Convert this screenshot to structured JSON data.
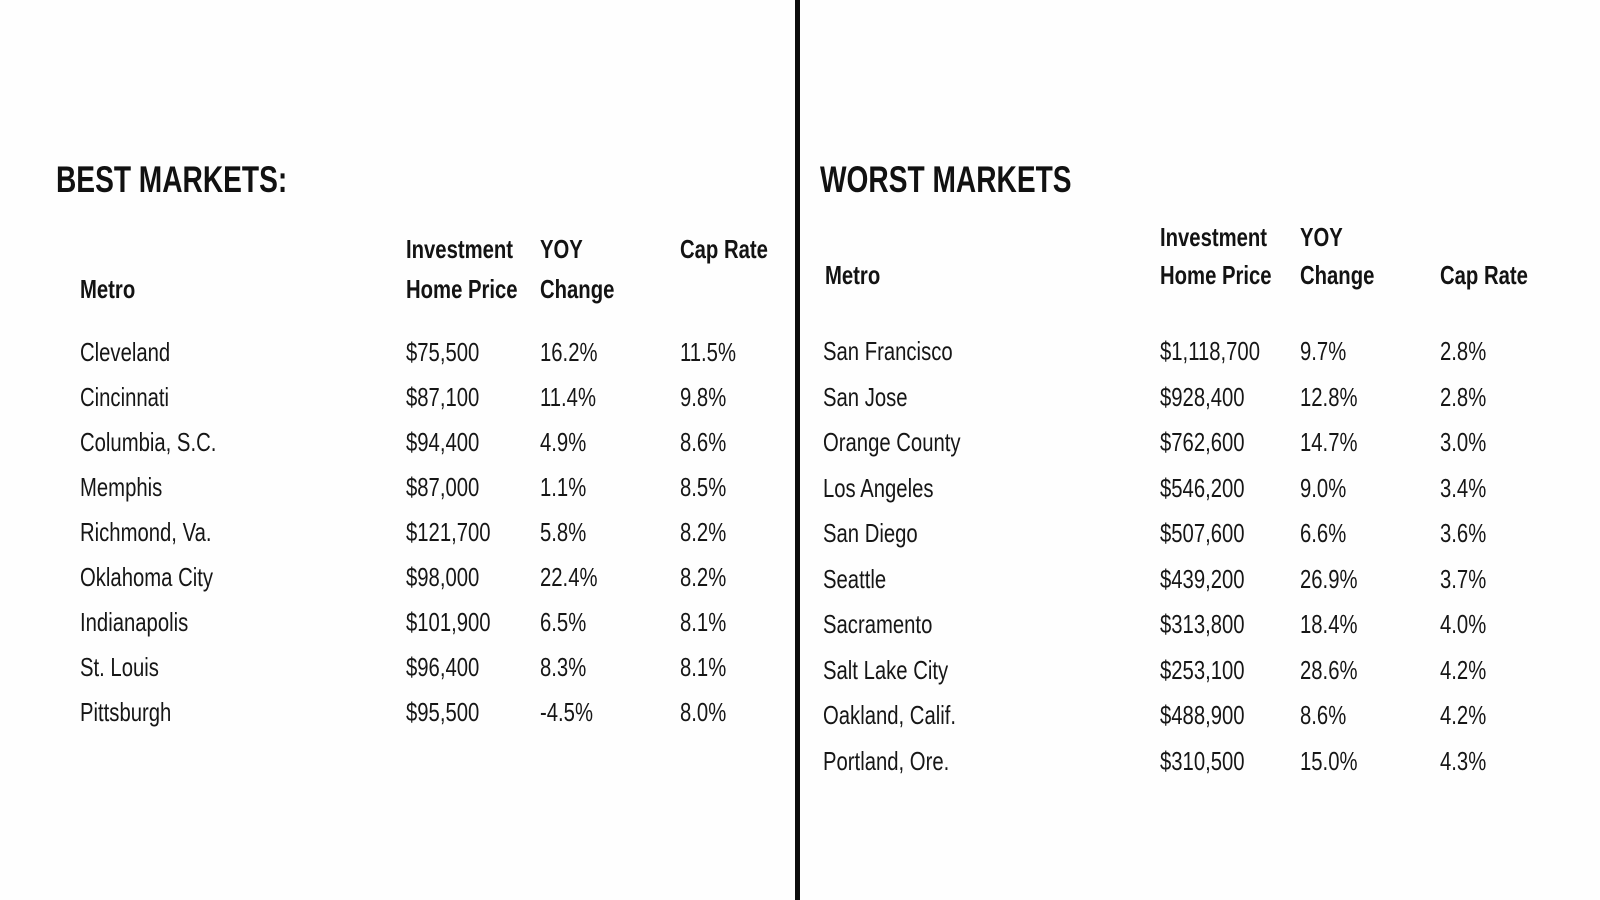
{
  "page": {
    "background_color": "#fefefe",
    "divider_color": "#0d0d0d",
    "text_color": "#161616"
  },
  "best": {
    "title": "BEST MARKETS:",
    "columns": {
      "metro": "Metro",
      "price_top": "Investment",
      "price_bottom": "Home Price",
      "yoy_top": "YOY",
      "yoy_bottom": "Change",
      "cap": "Cap Rate"
    },
    "rows": [
      {
        "metro": "Cleveland",
        "price": "$75,500",
        "yoy": "16.2%",
        "cap": "11.5%"
      },
      {
        "metro": "Cincinnati",
        "price": "$87,100",
        "yoy": "11.4%",
        "cap": "9.8%"
      },
      {
        "metro": "Columbia, S.C.",
        "price": "$94,400",
        "yoy": "4.9%",
        "cap": "8.6%"
      },
      {
        "metro": "Memphis",
        "price": "$87,000",
        "yoy": "1.1%",
        "cap": "8.5%"
      },
      {
        "metro": "Richmond, Va.",
        "price": "$121,700",
        "yoy": "5.8%",
        "cap": "8.2%"
      },
      {
        "metro": "Oklahoma City",
        "price": "$98,000",
        "yoy": "22.4%",
        "cap": "8.2%"
      },
      {
        "metro": "Indianapolis",
        "price": "$101,900",
        "yoy": "6.5%",
        "cap": "8.1%"
      },
      {
        "metro": "St. Louis",
        "price": "$96,400",
        "yoy": "8.3%",
        "cap": "8.1%"
      },
      {
        "metro": "Pittsburgh",
        "price": "$95,500",
        "yoy": "-4.5%",
        "cap": "8.0%"
      }
    ]
  },
  "worst": {
    "title": "WORST MARKETS",
    "columns": {
      "metro": "Metro",
      "price_top": "Investment",
      "price_bottom": "Home Price",
      "yoy_top": "YOY",
      "yoy_bottom": "Change",
      "cap": "Cap Rate"
    },
    "rows": [
      {
        "metro": "San Francisco",
        "price": "$1,118,700",
        "yoy": "9.7%",
        "cap": "2.8%"
      },
      {
        "metro": "San Jose",
        "price": "$928,400",
        "yoy": "12.8%",
        "cap": "2.8%"
      },
      {
        "metro": "Orange County",
        "price": "$762,600",
        "yoy": "14.7%",
        "cap": "3.0%"
      },
      {
        "metro": "Los Angeles",
        "price": "$546,200",
        "yoy": "9.0%",
        "cap": "3.4%"
      },
      {
        "metro": "San Diego",
        "price": "$507,600",
        "yoy": "6.6%",
        "cap": "3.6%"
      },
      {
        "metro": "Seattle",
        "price": "$439,200",
        "yoy": "26.9%",
        "cap": "3.7%"
      },
      {
        "metro": "Sacramento",
        "price": "$313,800",
        "yoy": "18.4%",
        "cap": "4.0%"
      },
      {
        "metro": "Salt Lake City",
        "price": "$253,100",
        "yoy": "28.6%",
        "cap": "4.2%"
      },
      {
        "metro": "Oakland, Calif.",
        "price": "$488,900",
        "yoy": "8.6%",
        "cap": "4.2%"
      },
      {
        "metro": "Portland, Ore.",
        "price": "$310,500",
        "yoy": "15.0%",
        "cap": "4.3%"
      }
    ]
  }
}
